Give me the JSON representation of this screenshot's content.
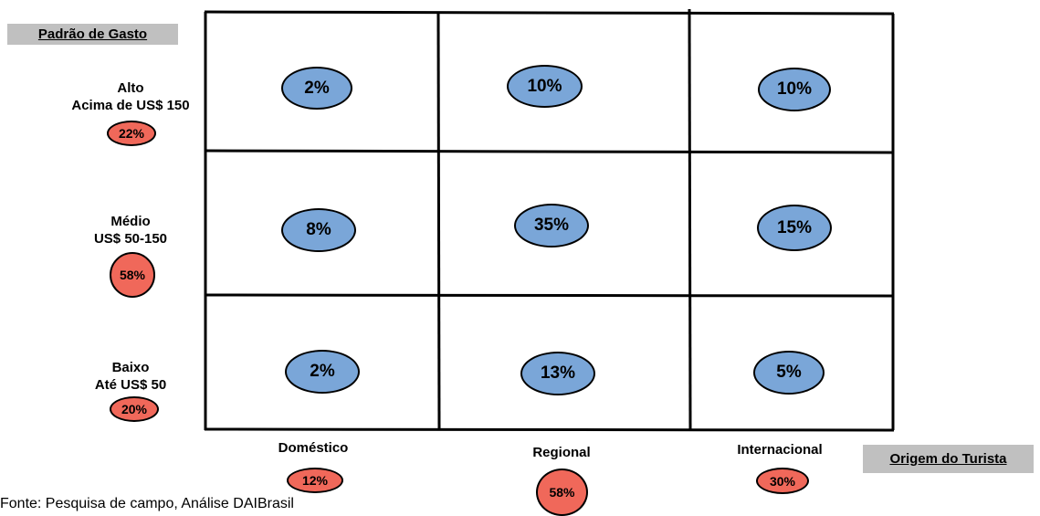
{
  "y_axis_title": "Padrão de Gasto",
  "x_axis_title": "Origem do Turista",
  "rows": [
    {
      "name": "Alto",
      "range": "Acima de US$ 150",
      "share": "22%"
    },
    {
      "name": "Médio",
      "range": "US$ 50-150",
      "share": "58%"
    },
    {
      "name": "Baixo",
      "range": "Até US$ 50",
      "share": "20%"
    }
  ],
  "columns": [
    {
      "name": "Doméstico",
      "share": "12%"
    },
    {
      "name": "Regional",
      "share": "58%"
    },
    {
      "name": "Internacional",
      "share": "30%"
    }
  ],
  "cells": [
    [
      "2%",
      "10%",
      "10%"
    ],
    [
      "8%",
      "35%",
      "15%"
    ],
    [
      "2%",
      "13%",
      "5%"
    ]
  ],
  "source_note": "Fonte: Pesquisa de campo, Análise DAIBrasil",
  "colors": {
    "cell_oval": "#7aa6d8",
    "total_oval": "#f0685a",
    "axis_box": "#c0c0c0"
  }
}
